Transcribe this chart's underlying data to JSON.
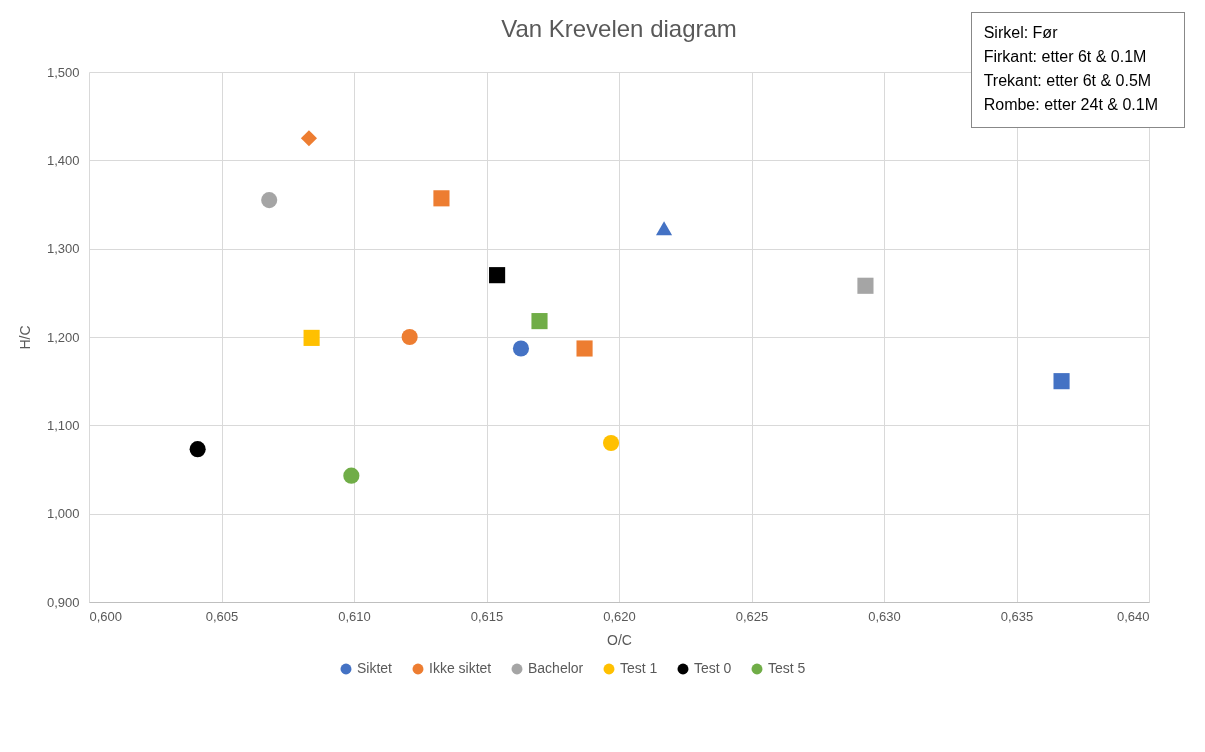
{
  "chart_data": {
    "type": "scatter",
    "title": "Van Krevelen diagram",
    "xlabel": "O/C",
    "ylabel": "H/C",
    "xlim": [
      0.6,
      0.64
    ],
    "xticks": [
      {
        "value": 0.6,
        "label": "0,600"
      },
      {
        "value": 0.605,
        "label": "0,605"
      },
      {
        "value": 0.61,
        "label": "0,610"
      },
      {
        "value": 0.615,
        "label": "0,615"
      },
      {
        "value": 0.62,
        "label": "0,620"
      },
      {
        "value": 0.625,
        "label": "0,625"
      },
      {
        "value": 0.63,
        "label": "0,630"
      },
      {
        "value": 0.635,
        "label": "0,635"
      },
      {
        "value": 0.64,
        "label": "0,640"
      }
    ],
    "ylim": [
      0.9,
      1.5
    ],
    "yticks": [
      {
        "value": 0.9,
        "label": "0,900"
      },
      {
        "value": 1.0,
        "label": "1,000"
      },
      {
        "value": 1.1,
        "label": "1,100"
      },
      {
        "value": 1.2,
        "label": "1,200"
      },
      {
        "value": 1.3,
        "label": "1,300"
      },
      {
        "value": 1.4,
        "label": "1,400"
      },
      {
        "value": 1.5,
        "label": "1,500"
      }
    ],
    "grid": true,
    "legend": "bottom",
    "annotations": [
      "Sirkel: Før",
      "Firkant: etter 6t & 0.1M",
      "Trekant: etter 6t & 0.5M",
      "Rombe: etter 24t & 0.1M"
    ],
    "series": [
      {
        "name": "Siktet",
        "color": "#4472c4",
        "marker": "circle",
        "x": [
          0.6163
        ],
        "values": [
          1.187
        ]
      },
      {
        "name": "Ikke siktet",
        "color": "#ed7d31",
        "marker": "circle",
        "x": [
          0.6121
        ],
        "values": [
          1.2
        ]
      },
      {
        "name": "Bachelor",
        "color": "#a5a5a5",
        "marker": "circle",
        "x": [
          0.6068
        ],
        "values": [
          1.355
        ]
      },
      {
        "name": "Test 1",
        "color": "#ffc000",
        "marker": "circle",
        "x": [
          0.6197
        ],
        "values": [
          1.08
        ]
      },
      {
        "name": "Test 0",
        "color": "#000000",
        "marker": "circle",
        "x": [
          0.6041
        ],
        "values": [
          1.073
        ]
      },
      {
        "name": "Test 5",
        "color": "#70ad47",
        "marker": "circle",
        "x": [
          0.6099
        ],
        "values": [
          1.043
        ]
      },
      {
        "color": "#4472c4",
        "marker": "square",
        "x": [
          0.6367
        ],
        "values": [
          1.15
        ]
      },
      {
        "color": "#4472c4",
        "marker": "triangle",
        "x": [
          0.6217
        ],
        "values": [
          1.323
        ]
      },
      {
        "color": "#ed7d31",
        "marker": "square",
        "x": [
          0.6133,
          0.6187
        ],
        "values": [
          1.357,
          1.187
        ]
      },
      {
        "color": "#ed7d31",
        "marker": "diamond",
        "x": [
          0.6083
        ],
        "values": [
          1.425
        ]
      },
      {
        "color": "#a5a5a5",
        "marker": "square",
        "x": [
          0.6293
        ],
        "values": [
          1.258
        ]
      },
      {
        "color": "#ffc000",
        "marker": "square",
        "x": [
          0.6084
        ],
        "values": [
          1.199
        ]
      },
      {
        "color": "#000000",
        "marker": "square",
        "x": [
          0.6154
        ],
        "values": [
          1.27
        ]
      },
      {
        "color": "#70ad47",
        "marker": "square",
        "x": [
          0.617
        ],
        "values": [
          1.218
        ]
      }
    ]
  }
}
